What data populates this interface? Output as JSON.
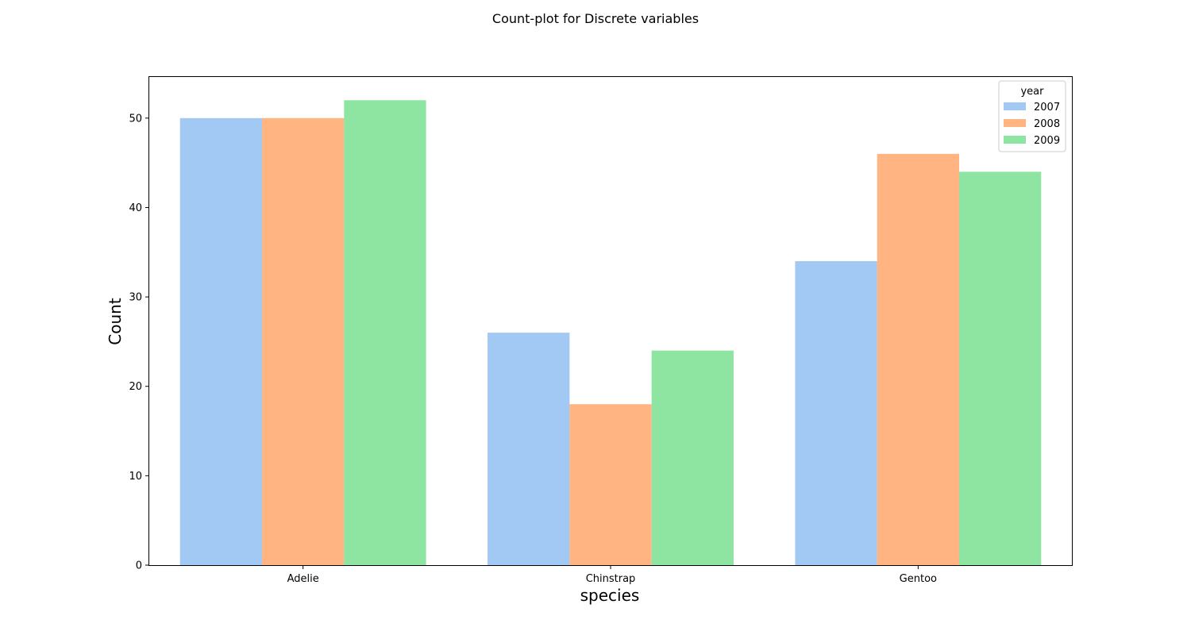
{
  "figure": {
    "title": "Count-plot for Discrete variables"
  },
  "chart_data": {
    "type": "bar",
    "title": "Count-plot for Discrete variables",
    "xlabel": "species",
    "ylabel": "Count",
    "categories": [
      "Adelie",
      "Chinstrap",
      "Gentoo"
    ],
    "ylim": [
      0,
      54.6
    ],
    "yticks": [
      0,
      10,
      20,
      30,
      40,
      50
    ],
    "grid": false,
    "legend": {
      "title": "year",
      "placement": "top-right"
    },
    "series": [
      {
        "name": "2007",
        "color": "#a1c9f4",
        "values": [
          50,
          26,
          34
        ]
      },
      {
        "name": "2008",
        "color": "#ffb482",
        "values": [
          50,
          18,
          46
        ]
      },
      {
        "name": "2009",
        "color": "#8de5a1",
        "values": [
          52,
          24,
          44
        ]
      }
    ]
  }
}
